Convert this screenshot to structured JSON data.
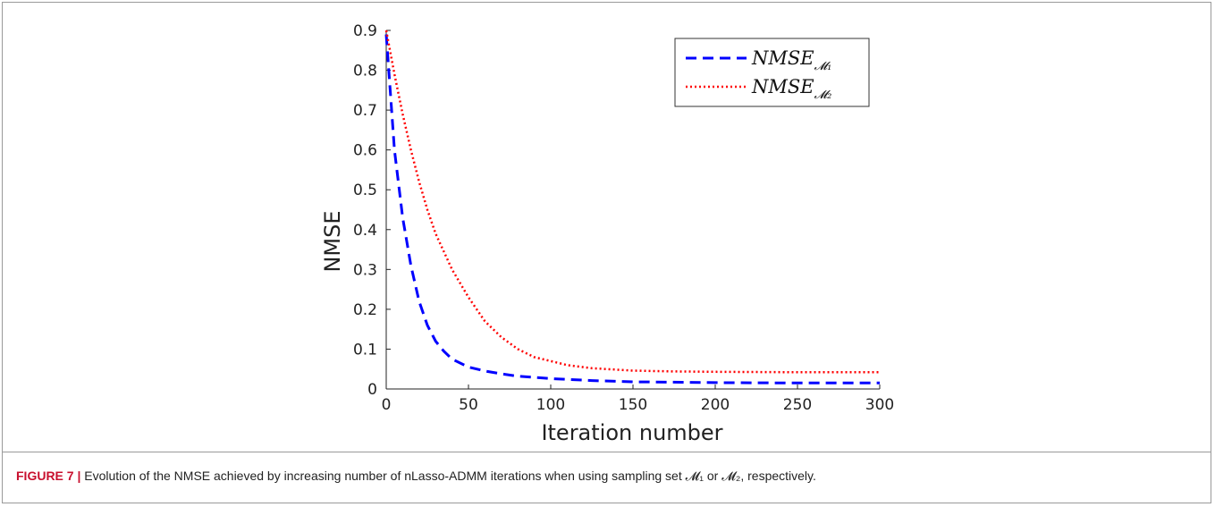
{
  "caption": {
    "label": "FIGURE 7 |",
    "text": "Evolution of the NMSE achieved by increasing number of nLasso-ADMM iterations when using sampling set 𝓜₁ or 𝓜₂, respectively."
  },
  "chart_data": {
    "type": "line",
    "xlabel": "Iteration number",
    "ylabel": "NMSE",
    "xlim": [
      0,
      300
    ],
    "ylim": [
      0,
      0.9
    ],
    "xticks": [
      "0",
      "50",
      "100",
      "150",
      "200",
      "250",
      "300"
    ],
    "yticks": [
      "0",
      "0.1",
      "0.2",
      "0.3",
      "0.4",
      "0.5",
      "0.6",
      "0.7",
      "0.8",
      "0.9"
    ],
    "legend_position": "top-right",
    "grid": false,
    "series": [
      {
        "name": "NMSE_M1",
        "legend_main": "NMSE",
        "legend_sub": "𝓜₁",
        "color": "#0000ff",
        "style": "dashed",
        "x": [
          0,
          5,
          10,
          15,
          20,
          25,
          30,
          35,
          40,
          50,
          60,
          70,
          80,
          100,
          125,
          150,
          200,
          250,
          300
        ],
        "y": [
          0.89,
          0.6,
          0.43,
          0.31,
          0.22,
          0.16,
          0.12,
          0.095,
          0.075,
          0.055,
          0.045,
          0.038,
          0.032,
          0.026,
          0.021,
          0.018,
          0.016,
          0.015,
          0.015
        ]
      },
      {
        "name": "NMSE_M2",
        "legend_main": "NMSE",
        "legend_sub": "𝓜₂",
        "color": "#ff0000",
        "style": "dotted",
        "x": [
          0,
          5,
          10,
          15,
          20,
          25,
          30,
          40,
          50,
          60,
          70,
          80,
          90,
          100,
          110,
          125,
          150,
          175,
          200,
          250,
          300
        ],
        "y": [
          0.9,
          0.79,
          0.69,
          0.6,
          0.52,
          0.45,
          0.39,
          0.3,
          0.23,
          0.17,
          0.13,
          0.1,
          0.08,
          0.07,
          0.06,
          0.052,
          0.046,
          0.044,
          0.043,
          0.042,
          0.042
        ]
      }
    ]
  }
}
